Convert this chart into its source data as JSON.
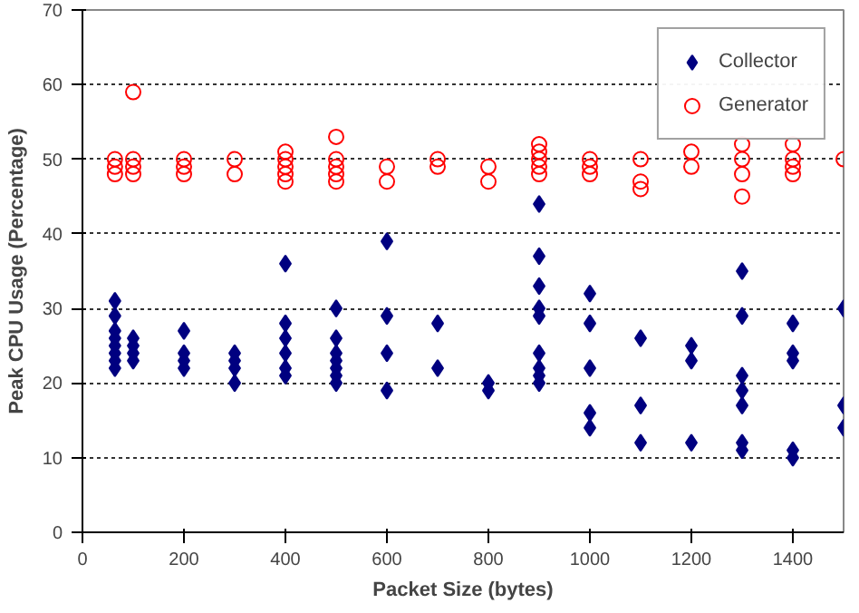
{
  "chart_data": {
    "type": "scatter",
    "xlabel": "Packet Size (bytes)",
    "ylabel": "Peak CPU Usage (Percentage)",
    "xlim": [
      0,
      1500
    ],
    "xticks": [
      0,
      200,
      400,
      600,
      800,
      1000,
      1200,
      1400
    ],
    "ylim": [
      0,
      70
    ],
    "yticks": [
      0,
      10,
      20,
      30,
      40,
      50,
      60,
      70
    ],
    "grid": "y",
    "legend": "top right",
    "series": [
      {
        "name": "Collector",
        "color": "#000080",
        "marker": "diamond",
        "x": [
          64,
          64,
          64,
          64,
          64,
          64,
          64,
          64,
          100,
          100,
          100,
          100,
          200,
          200,
          200,
          200,
          300,
          300,
          300,
          300,
          400,
          400,
          400,
          400,
          400,
          400,
          500,
          500,
          500,
          500,
          500,
          500,
          500,
          600,
          600,
          600,
          600,
          700,
          700,
          800,
          800,
          900,
          900,
          900,
          900,
          900,
          900,
          900,
          900,
          900,
          1000,
          1000,
          1000,
          1000,
          1000,
          1100,
          1100,
          1100,
          1200,
          1200,
          1200,
          1300,
          1300,
          1300,
          1300,
          1300,
          1300,
          1300,
          1400,
          1400,
          1400,
          1400,
          1400,
          1500,
          1500,
          1500
        ],
        "values": [
          31,
          29,
          27,
          26,
          25,
          24,
          23,
          22,
          26,
          25,
          24,
          23,
          27,
          24,
          23,
          22,
          24,
          23,
          22,
          20,
          36,
          28,
          26,
          24,
          22,
          21,
          30,
          26,
          24,
          23,
          22,
          21,
          20,
          39,
          29,
          24,
          19,
          28,
          22,
          20,
          19,
          44,
          37,
          33,
          30,
          29,
          24,
          22,
          21,
          20,
          32,
          28,
          22,
          16,
          14,
          26,
          17,
          12,
          25,
          23,
          12,
          35,
          29,
          21,
          19,
          17,
          12,
          11,
          28,
          24,
          23,
          11,
          10,
          30,
          17,
          14
        ]
      },
      {
        "name": "Generator",
        "color": "#ff0000",
        "marker": "circle",
        "x": [
          64,
          64,
          64,
          100,
          100,
          100,
          100,
          200,
          200,
          200,
          300,
          300,
          400,
          400,
          400,
          400,
          400,
          500,
          500,
          500,
          500,
          500,
          600,
          600,
          700,
          700,
          800,
          800,
          900,
          900,
          900,
          900,
          900,
          1000,
          1000,
          1000,
          1100,
          1100,
          1100,
          1200,
          1200,
          1300,
          1300,
          1300,
          1300,
          1400,
          1400,
          1400,
          1400,
          1500
        ],
        "values": [
          50,
          49,
          48,
          59,
          50,
          49,
          48,
          50,
          49,
          48,
          50,
          48,
          51,
          50,
          49,
          48,
          47,
          53,
          50,
          49,
          48,
          47,
          49,
          47,
          50,
          49,
          49,
          47,
          52,
          51,
          50,
          49,
          48,
          50,
          49,
          48,
          50,
          47,
          46,
          51,
          49,
          52,
          50,
          48,
          45,
          52,
          50,
          49,
          48,
          50
        ]
      }
    ]
  }
}
